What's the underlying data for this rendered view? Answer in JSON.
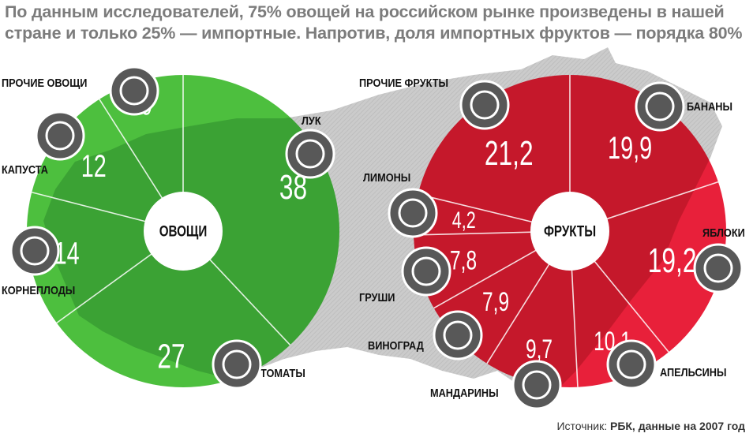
{
  "title_lines": [
    "По данным исследователей, 75% овощей на российском рынке произведены в нашей",
    "стране и только 25% — импортные. Напротив, доля импортных фруктов — порядка 80%"
  ],
  "source": {
    "label": "Источник:",
    "value": "РБК, данные на 2007 год"
  },
  "colors": {
    "vegetables": "#4dbf3e",
    "vegetables_dark": "#2e8a2c",
    "fruits": "#e8203a",
    "fruits_dark": "#a8121f",
    "map": "#c8c8c8",
    "icon": "#585858"
  },
  "chart_data": [
    {
      "type": "pie",
      "center_label": "ОВОЩИ",
      "categories": [
        "Лук",
        "Томаты",
        "Корнеплоды",
        "Капуста",
        "Прочие овощи"
      ],
      "labels": [
        "ЛУК",
        "ТОМАТЫ",
        "КОРНЕПЛОДЫ",
        "КАПУСТА",
        "ПРОЧИЕ ОВОЩИ"
      ],
      "values": [
        38,
        27,
        14,
        12,
        9
      ],
      "value_labels": [
        "38",
        "27",
        "14",
        "12",
        "9"
      ],
      "icons": [
        "onion-icon",
        "tomato-icon",
        "root-vegetable-icon",
        "cabbage-icon",
        "basket-icon"
      ]
    },
    {
      "type": "pie",
      "center_label": "ФРУКТЫ",
      "categories": [
        "Бананы",
        "Яблоки",
        "Апельсины",
        "Мандарины",
        "Виноград",
        "Груши",
        "Лимоны",
        "Прочие фрукты"
      ],
      "labels": [
        "БАНАНЫ",
        "ЯБЛОКИ",
        "АПЕЛЬСИНЫ",
        "МАНДАРИНЫ",
        "ВИНОГРАД",
        "ГРУШИ",
        "ЛИМОНЫ",
        "ПРОЧИЕ ФРУКТЫ"
      ],
      "values": [
        19.9,
        19.2,
        10.1,
        9.7,
        7.9,
        7.8,
        4.2,
        21.2
      ],
      "value_labels": [
        "19,9",
        "19,2",
        "10,1",
        "9,7",
        "7,9",
        "7,8",
        "4,2",
        "21,2"
      ],
      "icons": [
        "banana-icon",
        "apple-icon",
        "orange-icon",
        "tangerine-icon",
        "grapes-icon",
        "pear-icon",
        "lemon-icon",
        "basket-icon"
      ]
    }
  ]
}
